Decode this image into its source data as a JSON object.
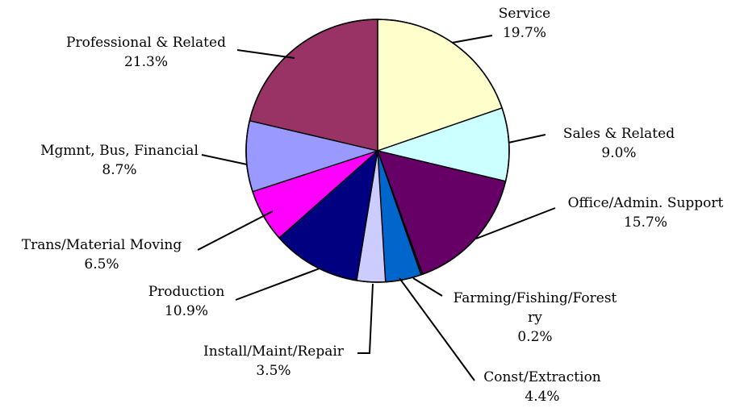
{
  "chart_data": {
    "type": "pie",
    "title": "",
    "slices": [
      {
        "name": "Service",
        "pct_label": "19.7%",
        "value": 19.7,
        "color": "#ffffcc"
      },
      {
        "name": "Sales & Related",
        "pct_label": "9.0%",
        "value": 9.0,
        "color": "#ccffff"
      },
      {
        "name": "Office/Admin. Support",
        "pct_label": "15.7%",
        "value": 15.7,
        "color": "#660066"
      },
      {
        "name": "Farming/Fishing/Forestry",
        "name_lines": [
          "Farming/Fishing/Forest",
          "ry"
        ],
        "pct_label": "0.2%",
        "value": 0.2,
        "color": "#2b2b2b"
      },
      {
        "name": "Const/Extraction",
        "pct_label": "4.4%",
        "value": 4.4,
        "color": "#0066cc"
      },
      {
        "name": "Install/Maint/Repair",
        "pct_label": "3.5%",
        "value": 3.5,
        "color": "#ccccff"
      },
      {
        "name": "Production",
        "pct_label": "10.9%",
        "value": 10.9,
        "color": "#000080"
      },
      {
        "name": "Trans/Material Moving",
        "pct_label": "6.5%",
        "value": 6.5,
        "color": "#ff00ff"
      },
      {
        "name": "Mgmnt, Bus, Financial",
        "pct_label": "8.7%",
        "value": 8.7,
        "color": "#9999ff"
      },
      {
        "name": "Professional & Related",
        "pct_label": "21.3%",
        "value": 21.3,
        "color": "#993366"
      }
    ]
  }
}
